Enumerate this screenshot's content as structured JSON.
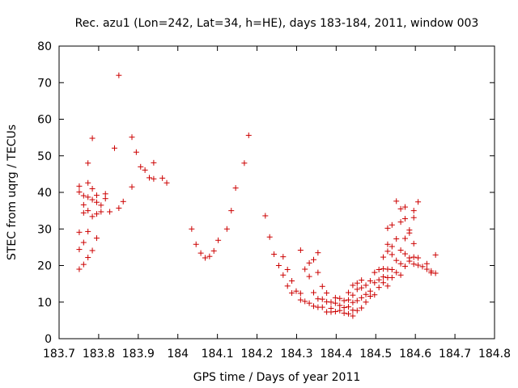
{
  "chart_data": {
    "type": "scatter",
    "title": "Rec. azu1 (Lon=242, Lat=34, h=HE), days 183-184, 2011, window 003",
    "xlabel": "GPS time / Days of year 2011",
    "ylabel": "STEC from uqrg / TECUs",
    "xlim": [
      183.7,
      184.8
    ],
    "ylim": [
      0,
      80
    ],
    "xticks": [
      183.7,
      183.8,
      183.9,
      184.0,
      184.1,
      184.2,
      184.3,
      184.4,
      184.5,
      184.6,
      184.7,
      184.8
    ],
    "xtick_labels": [
      "183.7",
      "183.8",
      "183.9",
      "184",
      "184.1",
      "184.2",
      "184.3",
      "184.4",
      "184.5",
      "184.6",
      "184.7",
      "184.8"
    ],
    "yticks": [
      0,
      10,
      20,
      30,
      40,
      50,
      60,
      70,
      80
    ],
    "ytick_labels": [
      "0",
      "10",
      "20",
      "30",
      "40",
      "50",
      "60",
      "70",
      "80"
    ],
    "grid": false,
    "marker": "+",
    "color": "#cc0000",
    "series": [
      {
        "name": "STEC",
        "points": [
          [
            183.751,
            41.7
          ],
          [
            183.751,
            40.1
          ],
          [
            183.751,
            29.1
          ],
          [
            183.751,
            24.4
          ],
          [
            183.751,
            19.0
          ],
          [
            183.762,
            39.1
          ],
          [
            183.762,
            36.6
          ],
          [
            183.762,
            34.4
          ],
          [
            183.762,
            26.3
          ],
          [
            183.762,
            20.3
          ],
          [
            183.773,
            48.0
          ],
          [
            183.773,
            42.6
          ],
          [
            183.773,
            38.7
          ],
          [
            183.773,
            35.0
          ],
          [
            183.773,
            29.3
          ],
          [
            183.773,
            22.2
          ],
          [
            183.784,
            54.8
          ],
          [
            183.784,
            41.0
          ],
          [
            183.784,
            38.0
          ],
          [
            183.784,
            33.4
          ],
          [
            183.784,
            24.1
          ],
          [
            183.795,
            39.2
          ],
          [
            183.795,
            37.3
          ],
          [
            183.795,
            34.1
          ],
          [
            183.795,
            27.5
          ],
          [
            183.806,
            36.5
          ],
          [
            183.806,
            34.7
          ],
          [
            183.817,
            39.6
          ],
          [
            183.817,
            38.3
          ],
          [
            183.828,
            34.7
          ],
          [
            183.84,
            52.1
          ],
          [
            183.851,
            72.0
          ],
          [
            183.851,
            35.7
          ],
          [
            183.862,
            37.5
          ],
          [
            183.884,
            55.1
          ],
          [
            183.884,
            41.5
          ],
          [
            183.895,
            51.0
          ],
          [
            183.906,
            47.0
          ],
          [
            183.917,
            46.1
          ],
          [
            183.928,
            44.0
          ],
          [
            183.939,
            48.1
          ],
          [
            183.939,
            43.7
          ],
          [
            183.961,
            43.9
          ],
          [
            183.972,
            42.6
          ],
          [
            184.035,
            30.0
          ],
          [
            184.046,
            25.8
          ],
          [
            184.058,
            23.4
          ],
          [
            184.069,
            22.1
          ],
          [
            184.08,
            22.5
          ],
          [
            184.091,
            24.0
          ],
          [
            184.102,
            26.9
          ],
          [
            184.124,
            30.0
          ],
          [
            184.135,
            35.0
          ],
          [
            184.146,
            41.2
          ],
          [
            184.168,
            48.0
          ],
          [
            184.179,
            55.6
          ],
          [
            184.221,
            33.6
          ],
          [
            184.232,
            27.8
          ],
          [
            184.243,
            23.1
          ],
          [
            184.255,
            20.0
          ],
          [
            184.266,
            22.4
          ],
          [
            184.266,
            17.4
          ],
          [
            184.277,
            18.9
          ],
          [
            184.277,
            14.4
          ],
          [
            184.288,
            15.8
          ],
          [
            184.288,
            12.5
          ],
          [
            184.299,
            13.0
          ],
          [
            184.31,
            24.2
          ],
          [
            184.31,
            12.4
          ],
          [
            184.31,
            10.6
          ],
          [
            184.321,
            19.0
          ],
          [
            184.321,
            10.2
          ],
          [
            184.332,
            20.7
          ],
          [
            184.332,
            17.0
          ],
          [
            184.332,
            9.7
          ],
          [
            184.343,
            21.6
          ],
          [
            184.343,
            12.6
          ],
          [
            184.343,
            8.9
          ],
          [
            184.354,
            23.5
          ],
          [
            184.354,
            18.1
          ],
          [
            184.354,
            10.9
          ],
          [
            184.354,
            8.6
          ],
          [
            184.365,
            14.3
          ],
          [
            184.365,
            10.8
          ],
          [
            184.365,
            8.6
          ],
          [
            184.376,
            12.5
          ],
          [
            184.376,
            10.1
          ],
          [
            184.376,
            7.3
          ],
          [
            184.387,
            10.0
          ],
          [
            184.387,
            8.3
          ],
          [
            184.387,
            7.3
          ],
          [
            184.398,
            11.2
          ],
          [
            184.398,
            9.7
          ],
          [
            184.398,
            7.4
          ],
          [
            184.409,
            11.0
          ],
          [
            184.409,
            9.1
          ],
          [
            184.409,
            7.7
          ],
          [
            184.42,
            10.4
          ],
          [
            184.42,
            8.5
          ],
          [
            184.42,
            7.0
          ],
          [
            184.431,
            12.6
          ],
          [
            184.431,
            10.6
          ],
          [
            184.431,
            8.7
          ],
          [
            184.431,
            6.8
          ],
          [
            184.442,
            14.6
          ],
          [
            184.442,
            11.9
          ],
          [
            184.442,
            9.9
          ],
          [
            184.442,
            7.8
          ],
          [
            184.442,
            6.2
          ],
          [
            184.453,
            15.2
          ],
          [
            184.453,
            13.5
          ],
          [
            184.453,
            10.4
          ],
          [
            184.453,
            7.7
          ],
          [
            184.464,
            16.0
          ],
          [
            184.464,
            13.9
          ],
          [
            184.464,
            11.2
          ],
          [
            184.464,
            8.4
          ],
          [
            184.475,
            14.6
          ],
          [
            184.475,
            12.1
          ],
          [
            184.475,
            10.0
          ],
          [
            184.486,
            15.8
          ],
          [
            184.486,
            13.0
          ],
          [
            184.486,
            11.6
          ],
          [
            184.497,
            18.1
          ],
          [
            184.497,
            15.3
          ],
          [
            184.497,
            12.0
          ],
          [
            184.508,
            18.9
          ],
          [
            184.508,
            16.1
          ],
          [
            184.508,
            14.0
          ],
          [
            184.519,
            22.3
          ],
          [
            184.519,
            19.1
          ],
          [
            184.519,
            16.9
          ],
          [
            184.519,
            15.3
          ],
          [
            184.53,
            30.2
          ],
          [
            184.53,
            25.8
          ],
          [
            184.53,
            23.9
          ],
          [
            184.53,
            19.0
          ],
          [
            184.53,
            16.7
          ],
          [
            184.53,
            14.4
          ],
          [
            184.541,
            31.1
          ],
          [
            184.541,
            25.2
          ],
          [
            184.541,
            23.0
          ],
          [
            184.541,
            18.9
          ],
          [
            184.541,
            16.7
          ],
          [
            184.552,
            37.6
          ],
          [
            184.552,
            27.3
          ],
          [
            184.552,
            21.4
          ],
          [
            184.552,
            18.1
          ],
          [
            184.563,
            35.5
          ],
          [
            184.563,
            31.9
          ],
          [
            184.563,
            24.2
          ],
          [
            184.563,
            20.5
          ],
          [
            184.563,
            17.4
          ],
          [
            184.574,
            36.0
          ],
          [
            184.574,
            32.8
          ],
          [
            184.574,
            27.4
          ],
          [
            184.574,
            23.2
          ],
          [
            184.574,
            19.8
          ],
          [
            184.585,
            29.7
          ],
          [
            184.585,
            28.9
          ],
          [
            184.585,
            22.1
          ],
          [
            184.585,
            21.2
          ],
          [
            184.596,
            35.0
          ],
          [
            184.596,
            33.1
          ],
          [
            184.596,
            26.0
          ],
          [
            184.596,
            22.3
          ],
          [
            184.596,
            20.4
          ],
          [
            184.607,
            37.4
          ],
          [
            184.607,
            22.1
          ],
          [
            184.607,
            20.1
          ],
          [
            184.618,
            19.7
          ],
          [
            184.629,
            20.5
          ],
          [
            184.629,
            19.0
          ],
          [
            184.64,
            18.5
          ],
          [
            184.64,
            18.0
          ],
          [
            184.651,
            22.9
          ],
          [
            184.651,
            17.9
          ]
        ]
      }
    ]
  }
}
